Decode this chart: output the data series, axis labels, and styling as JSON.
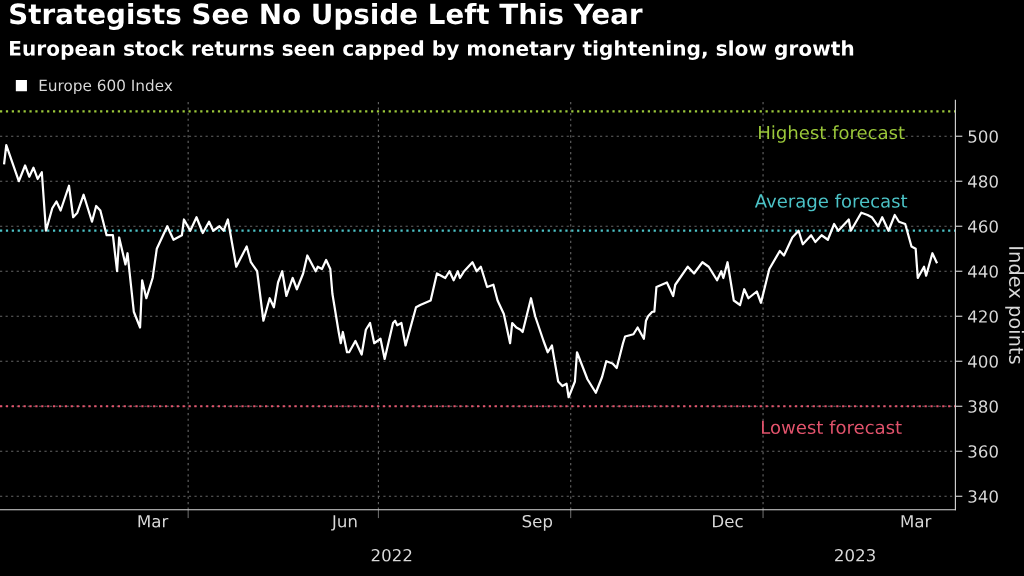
{
  "chart_data": {
    "type": "line",
    "title": "Strategists See No Upside Left This Year",
    "subtitle": "European stock returns seen capped by monetary tightening, slow growth",
    "ylabel": "Index points",
    "x": [
      "2022-01-03",
      "2022-01-04",
      "2022-01-07",
      "2022-01-10",
      "2022-01-13",
      "2022-01-15",
      "2022-01-17",
      "2022-01-19",
      "2022-01-21",
      "2022-01-23",
      "2022-01-26",
      "2022-01-28",
      "2022-01-30",
      "2022-02-03",
      "2022-02-05",
      "2022-02-07",
      "2022-02-10",
      "2022-02-14",
      "2022-02-16",
      "2022-02-18",
      "2022-02-21",
      "2022-02-24",
      "2022-02-26",
      "2022-02-27",
      "2022-03-02",
      "2022-03-03",
      "2022-03-06",
      "2022-03-09",
      "2022-03-10",
      "2022-03-12",
      "2022-03-15",
      "2022-03-17",
      "2022-03-20",
      "2022-03-22",
      "2022-03-25",
      "2022-03-29",
      "2022-03-30",
      "2022-04-02",
      "2022-04-05",
      "2022-04-08",
      "2022-04-11",
      "2022-04-13",
      "2022-04-16",
      "2022-04-18",
      "2022-04-20",
      "2022-04-24",
      "2022-04-29",
      "2022-05-01",
      "2022-05-04",
      "2022-05-07",
      "2022-05-10",
      "2022-05-12",
      "2022-05-14",
      "2022-05-16",
      "2022-05-18",
      "2022-05-21",
      "2022-05-23",
      "2022-05-26",
      "2022-05-28",
      "2022-06-01",
      "2022-06-02",
      "2022-06-04",
      "2022-06-06",
      "2022-06-08",
      "2022-06-09",
      "2022-06-12",
      "2022-06-13",
      "2022-06-14",
      "2022-06-16",
      "2022-06-17",
      "2022-06-20",
      "2022-06-23",
      "2022-06-25",
      "2022-06-27",
      "2022-06-29",
      "2022-07-02",
      "2022-07-04",
      "2022-07-08",
      "2022-07-09",
      "2022-07-10",
      "2022-07-12",
      "2022-07-14",
      "2022-07-19",
      "2022-07-21",
      "2022-07-26",
      "2022-07-29",
      "2022-08-02",
      "2022-08-04",
      "2022-08-06",
      "2022-08-08",
      "2022-08-09",
      "2022-08-11",
      "2022-08-15",
      "2022-08-17",
      "2022-08-19",
      "2022-08-22",
      "2022-08-25",
      "2022-08-27",
      "2022-08-30",
      "2022-09-02",
      "2022-09-03",
      "2022-09-05",
      "2022-09-07",
      "2022-09-08",
      "2022-09-12",
      "2022-09-14",
      "2022-09-18",
      "2022-09-20",
      "2022-09-22",
      "2022-09-25",
      "2022-09-27",
      "2022-09-29",
      "2022-09-30",
      "2022-10-03",
      "2022-10-04",
      "2022-10-09",
      "2022-10-13",
      "2022-10-16",
      "2022-10-18",
      "2022-10-21",
      "2022-10-23",
      "2022-10-26",
      "2022-10-27",
      "2022-10-31",
      "2022-11-02",
      "2022-11-05",
      "2022-11-06",
      "2022-11-07",
      "2022-11-09",
      "2022-11-10",
      "2022-11-11",
      "2022-11-16",
      "2022-11-19",
      "2022-11-20",
      "2022-11-26",
      "2022-11-29",
      "2022-12-03",
      "2022-12-06",
      "2022-12-10",
      "2022-12-12",
      "2022-12-13",
      "2022-12-15",
      "2022-12-18",
      "2022-12-21",
      "2022-12-23",
      "2022-12-25",
      "2022-12-29",
      "2022-12-31",
      "2023-01-04",
      "2023-01-09",
      "2023-01-11",
      "2023-01-15",
      "2023-01-18",
      "2023-01-20",
      "2023-01-24",
      "2023-01-26",
      "2023-01-29",
      "2023-02-01",
      "2023-02-04",
      "2023-02-06",
      "2023-02-08",
      "2023-02-11",
      "2023-02-12",
      "2023-02-17",
      "2023-02-20",
      "2023-02-22",
      "2023-02-25",
      "2023-02-27",
      "2023-03-02",
      "2023-03-05",
      "2023-03-07",
      "2023-03-10",
      "2023-03-13",
      "2023-03-15",
      "2023-03-16",
      "2023-03-19",
      "2023-03-20",
      "2023-03-23",
      "2023-03-25"
    ],
    "series": [
      {
        "name": "Europe 600 Index",
        "color": "#ffffff",
        "values": [
          488,
          496,
          488,
          480,
          487,
          482,
          486,
          481,
          484,
          458,
          468,
          471,
          467,
          478,
          464,
          466,
          474,
          462,
          469,
          467,
          456,
          456,
          440,
          455,
          443,
          448,
          422,
          415,
          436,
          428,
          437,
          450,
          456,
          460,
          454,
          456,
          463,
          458,
          464,
          457,
          462,
          458,
          460,
          458,
          463,
          442,
          451,
          444,
          440,
          418,
          428,
          424,
          435,
          440,
          429,
          437,
          432,
          439,
          447,
          440,
          442,
          441,
          445,
          441,
          430,
          413,
          408,
          413,
          404,
          404,
          409,
          403,
          414,
          417,
          408,
          410,
          401,
          417,
          418,
          416,
          417,
          407,
          424,
          425,
          427,
          439,
          437,
          440,
          436,
          440,
          437,
          440,
          444,
          440,
          442,
          433,
          434,
          427,
          421,
          408,
          417,
          415,
          414,
          413,
          428,
          420,
          409,
          404,
          407,
          391,
          389,
          390,
          384,
          391,
          404,
          392,
          386,
          393,
          400,
          399,
          397,
          408,
          411,
          412,
          415,
          410,
          418,
          420,
          422,
          422,
          433,
          435,
          429,
          434,
          442,
          439,
          444,
          442,
          436,
          440,
          437,
          444,
          427,
          425,
          432,
          428,
          431,
          426,
          441,
          449,
          447,
          455,
          458,
          452,
          456,
          453,
          456,
          454,
          461,
          458,
          460,
          463,
          458,
          466,
          465,
          464,
          460,
          464,
          458,
          465,
          462,
          461,
          451,
          450,
          437,
          442,
          438,
          448,
          444
        ]
      }
    ],
    "xlim": [
      "2022-01-01",
      "2023-04-03"
    ],
    "xticks": [
      {
        "value": "2022-03-15",
        "label": "Mar"
      },
      {
        "value": "2022-04-01",
        "label": null
      },
      {
        "value": "2022-06-15",
        "label": "Jun"
      },
      {
        "value": "2022-07-01",
        "label": null
      },
      {
        "value": "2022-09-15",
        "label": "Sep"
      },
      {
        "value": "2022-10-01",
        "label": null
      },
      {
        "value": "2022-12-15",
        "label": "Dec"
      },
      {
        "value": "2023-01-01",
        "label": null
      },
      {
        "value": "2023-03-15",
        "label": "Mar"
      }
    ],
    "ylim": [
      334,
      516
    ],
    "yticks": [
      340,
      360,
      380,
      400,
      420,
      440,
      460,
      480,
      500
    ],
    "ref_lines": [
      {
        "axis": "y",
        "value": 511,
        "label": "Highest forecast",
        "color": "#9bc83a",
        "line_style": "dotted"
      },
      {
        "axis": "y",
        "value": 458,
        "label": "Average forecast",
        "color": "#4cc4c8",
        "line_style": "dotted"
      },
      {
        "axis": "y",
        "value": 380,
        "label": "Lowest forecast",
        "color": "#e2536c",
        "line_style": "dotted"
      }
    ],
    "annotations": [
      "2022",
      "2023"
    ],
    "grid": true,
    "legend": "top left"
  }
}
